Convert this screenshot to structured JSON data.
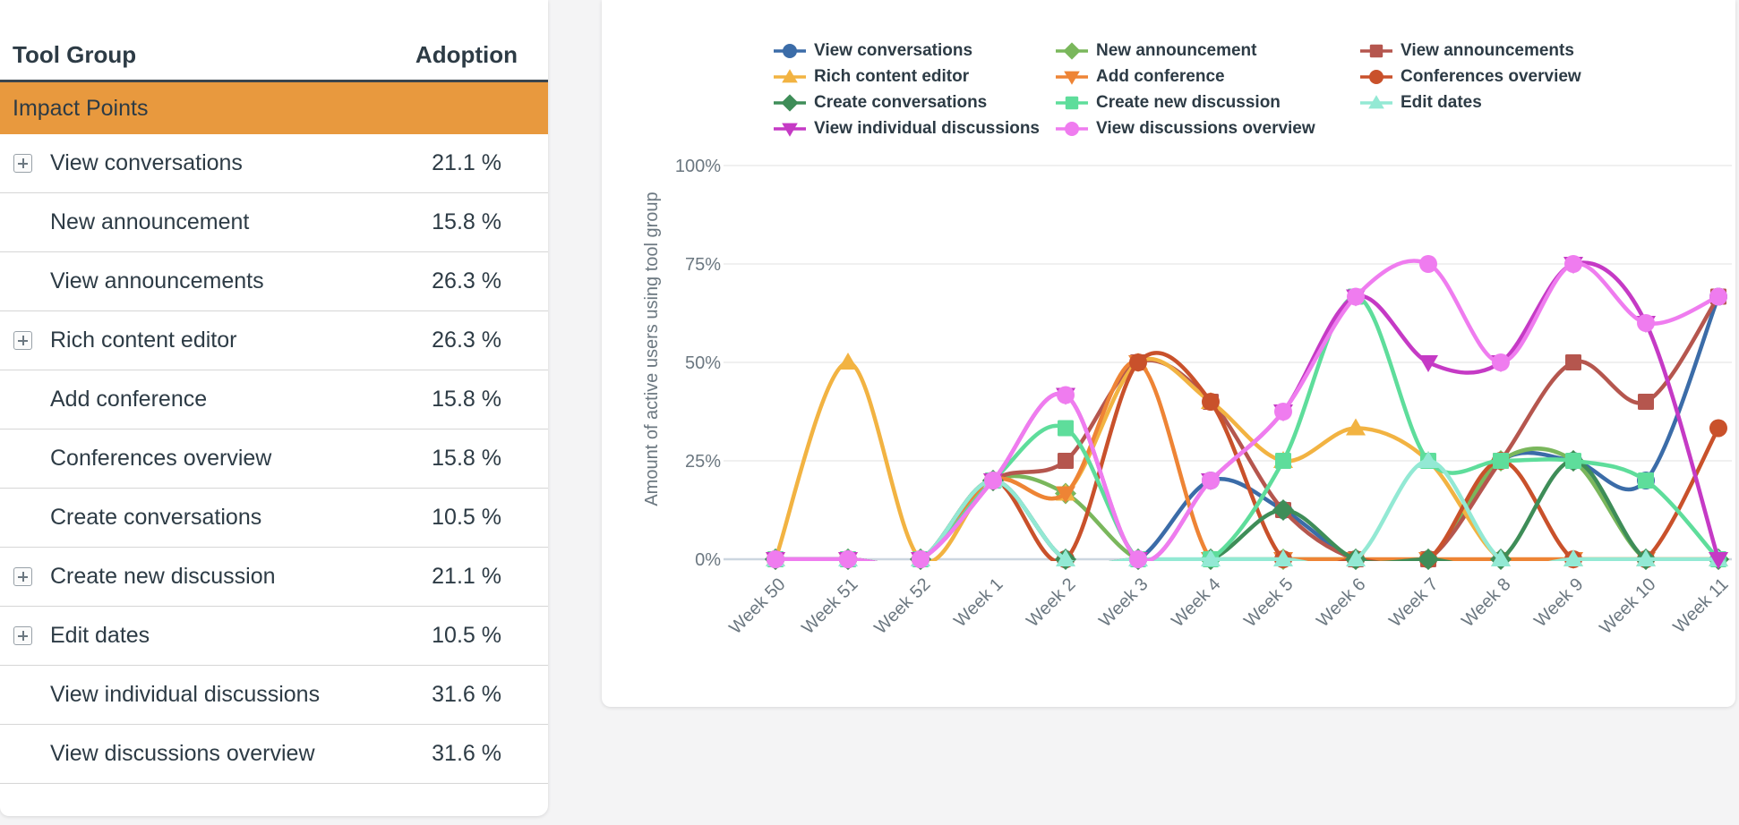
{
  "table": {
    "columns": {
      "tool_group": "Tool Group",
      "adoption": "Adoption"
    },
    "group_header": "Impact Points",
    "group_header_color": "#e8993e",
    "rows": [
      {
        "label": "View conversations",
        "value": "21.1 %",
        "expandable": true
      },
      {
        "label": "New announcement",
        "value": "15.8 %",
        "expandable": false
      },
      {
        "label": "View announcements",
        "value": "26.3 %",
        "expandable": false
      },
      {
        "label": "Rich content editor",
        "value": "26.3 %",
        "expandable": true
      },
      {
        "label": "Add conference",
        "value": "15.8 %",
        "expandable": false
      },
      {
        "label": "Conferences overview",
        "value": "15.8 %",
        "expandable": false
      },
      {
        "label": "Create conversations",
        "value": "10.5 %",
        "expandable": false
      },
      {
        "label": "Create new discussion",
        "value": "21.1 %",
        "expandable": true
      },
      {
        "label": "Edit dates",
        "value": "10.5 %",
        "expandable": true
      },
      {
        "label": "View individual discussions",
        "value": "31.6 %",
        "expandable": false
      },
      {
        "label": "View discussions overview",
        "value": "31.6 %",
        "expandable": false
      }
    ]
  },
  "chart_data": {
    "type": "line",
    "title": "",
    "ylabel": "Amount of active users using tool group",
    "xlabel": "",
    "ylim": [
      0,
      100
    ],
    "yticks": [
      {
        "label": "100%",
        "value": 100
      },
      {
        "label": "75%",
        "value": 75
      },
      {
        "label": "50%",
        "value": 50
      },
      {
        "label": "25%",
        "value": 25
      },
      {
        "label": "0%",
        "value": 0
      }
    ],
    "grid": true,
    "legend_position": "top",
    "categories": [
      "Week 50",
      "Week 51",
      "Week 52",
      "Week 1",
      "Week 2",
      "Week 3",
      "Week 4",
      "Week 5",
      "Week 6",
      "Week 7",
      "Week 8",
      "Week 9",
      "Week 10",
      "Week 11"
    ],
    "series": [
      {
        "name": "View conversations",
        "color": "#3b6ca8",
        "marker": "circle",
        "values": [
          0,
          0,
          0,
          20,
          0,
          0,
          20,
          12.5,
          0,
          0,
          25,
          25,
          20,
          66.7
        ]
      },
      {
        "name": "New announcement",
        "color": "#7ab75c",
        "marker": "diamond",
        "values": [
          0,
          0,
          0,
          20,
          16.7,
          0,
          0,
          0,
          0,
          0,
          25,
          25,
          0,
          0
        ]
      },
      {
        "name": "View announcements",
        "color": "#b5564e",
        "marker": "square",
        "values": [
          0,
          0,
          0,
          20,
          25,
          50,
          40,
          12.5,
          0,
          0,
          25,
          50,
          40,
          66.7
        ]
      },
      {
        "name": "Rich content editor",
        "color": "#f2b342",
        "marker": "triangle-up",
        "values": [
          0,
          50,
          0,
          20,
          16.7,
          50,
          40,
          25,
          33.3,
          25,
          0,
          0,
          0,
          0
        ]
      },
      {
        "name": "Add conference",
        "color": "#ee8435",
        "marker": "triangle-down",
        "values": [
          0,
          0,
          0,
          20,
          16.7,
          50,
          0,
          0,
          0,
          0,
          0,
          0,
          0,
          0
        ]
      },
      {
        "name": "Conferences overview",
        "color": "#c9512b",
        "marker": "circle",
        "values": [
          0,
          0,
          0,
          20,
          0,
          50,
          40,
          0,
          0,
          0,
          25,
          0,
          0,
          33.3
        ]
      },
      {
        "name": "Create conversations",
        "color": "#3e8d58",
        "marker": "diamond",
        "values": [
          0,
          0,
          0,
          20,
          0,
          0,
          0,
          12.5,
          0,
          0,
          0,
          25,
          0,
          0
        ]
      },
      {
        "name": "Create new discussion",
        "color": "#5edd9b",
        "marker": "square",
        "values": [
          0,
          0,
          0,
          20,
          33.3,
          0,
          0,
          25,
          66.7,
          25,
          25,
          25,
          20,
          0
        ]
      },
      {
        "name": "Edit dates",
        "color": "#93e9d4",
        "marker": "triangle-up",
        "values": [
          0,
          0,
          0,
          20,
          0,
          0,
          0,
          0,
          0,
          25,
          0,
          0,
          0,
          0
        ]
      },
      {
        "name": "View individual discussions",
        "color": "#c53ac5",
        "marker": "triangle-down",
        "values": [
          0,
          0,
          0,
          20,
          41.7,
          0,
          20,
          37.5,
          66.7,
          50,
          50,
          75,
          60,
          0
        ]
      },
      {
        "name": "View discussions overview",
        "color": "#ef7cef",
        "marker": "circle",
        "values": [
          0,
          0,
          0,
          20,
          41.7,
          0,
          20,
          37.5,
          66.7,
          75,
          50,
          75,
          60,
          66.7
        ]
      }
    ]
  }
}
